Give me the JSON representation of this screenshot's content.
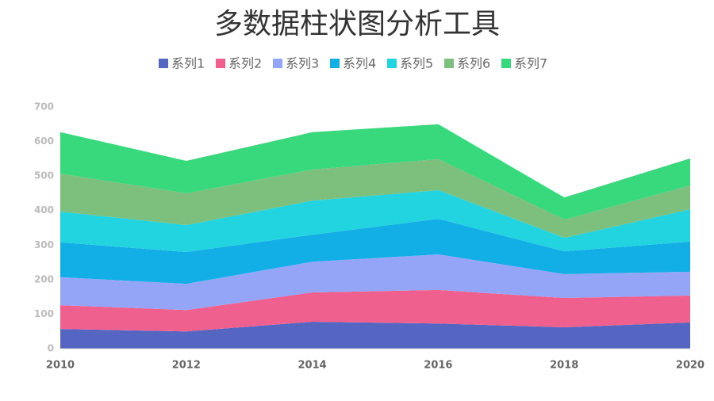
{
  "chart_data": {
    "type": "stacked-area",
    "title": "多数据柱状图分析工具",
    "x": [
      2010,
      2012,
      2014,
      2016,
      2018,
      2020
    ],
    "xlim": [
      2010,
      2020
    ],
    "xticks": [
      2010,
      2012,
      2014,
      2016,
      2018,
      2020
    ],
    "ylim": [
      0,
      700
    ],
    "yticks": [
      0,
      100,
      200,
      300,
      400,
      500,
      600,
      700
    ],
    "grid": false,
    "legend": "top",
    "series": [
      {
        "name": "系列1",
        "color": "#5565c2",
        "values": [
          57,
          50,
          78,
          73,
          62,
          76
        ]
      },
      {
        "name": "系列2",
        "color": "#f0608e",
        "values": [
          69,
          62,
          85,
          97,
          85,
          78
        ]
      },
      {
        "name": "系列3",
        "color": "#94a5f7",
        "values": [
          81,
          76,
          89,
          103,
          69,
          69
        ]
      },
      {
        "name": "系列4",
        "color": "#12aee6",
        "values": [
          101,
          92,
          78,
          103,
          66,
          87
        ]
      },
      {
        "name": "系列5",
        "color": "#22d3e0",
        "values": [
          89,
          78,
          99,
          83,
          39,
          94
        ]
      },
      {
        "name": "系列6",
        "color": "#7dbf7d",
        "values": [
          110,
          92,
          90,
          90,
          53,
          69
        ]
      },
      {
        "name": "系列7",
        "color": "#38d87c",
        "values": [
          120,
          94,
          108,
          101,
          64,
          78
        ]
      }
    ]
  }
}
